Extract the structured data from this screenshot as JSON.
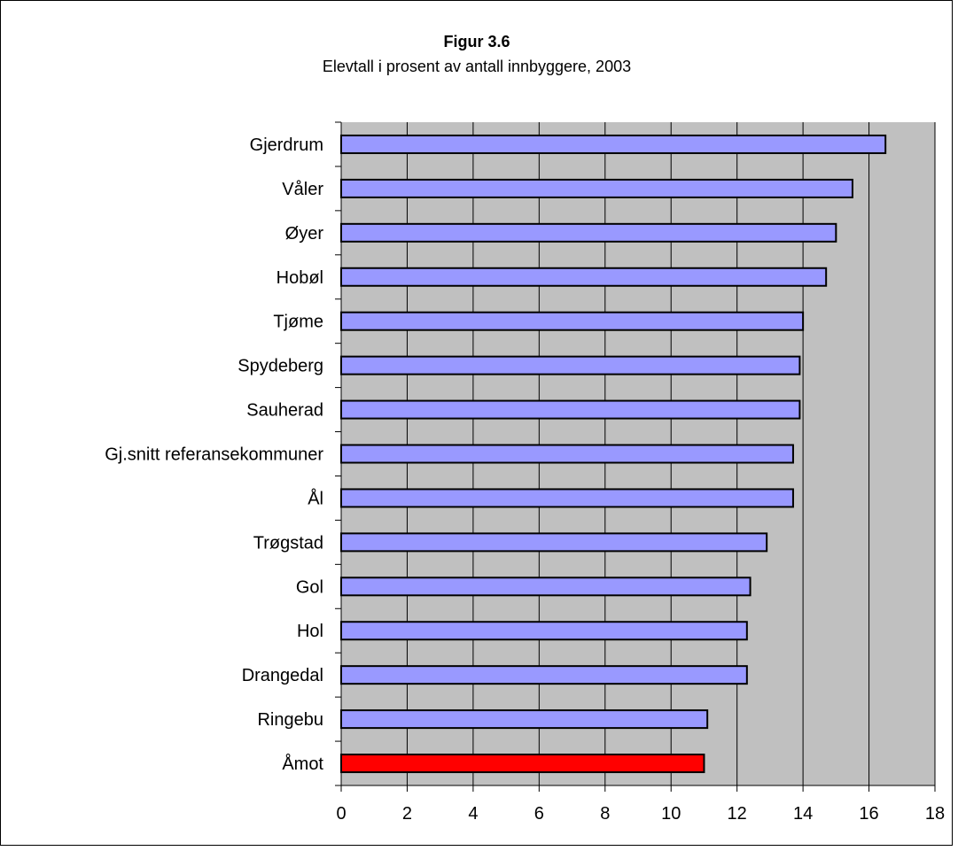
{
  "chart_data": {
    "type": "bar",
    "orientation": "horizontal",
    "title": "Figur 3.6",
    "subtitle": "Elevtall i prosent av antall innbyggere, 2003",
    "xlabel": "",
    "ylabel": "",
    "xlim": [
      0,
      18
    ],
    "x_ticks": [
      0,
      2,
      4,
      6,
      8,
      10,
      12,
      14,
      16,
      18
    ],
    "grid": "vertical",
    "plot_background": "#c0c0c0",
    "bar_color": "#9999ff",
    "highlight_color": "#ff0000",
    "categories": [
      "Gjerdrum",
      "Våler",
      "Øyer",
      "Hobøl",
      "Tjøme",
      "Spydeberg",
      "Sauherad",
      "Gj.snitt referansekommuner",
      "Ål",
      "Trøgstad",
      "Gol",
      "Hol",
      "Drangedal",
      "Ringebu",
      "Åmot"
    ],
    "values": [
      16.5,
      15.5,
      15.0,
      14.7,
      14.0,
      13.9,
      13.9,
      13.7,
      13.7,
      12.9,
      12.4,
      12.3,
      12.3,
      11.1,
      11.0
    ],
    "highlighted": [
      "Åmot"
    ]
  }
}
